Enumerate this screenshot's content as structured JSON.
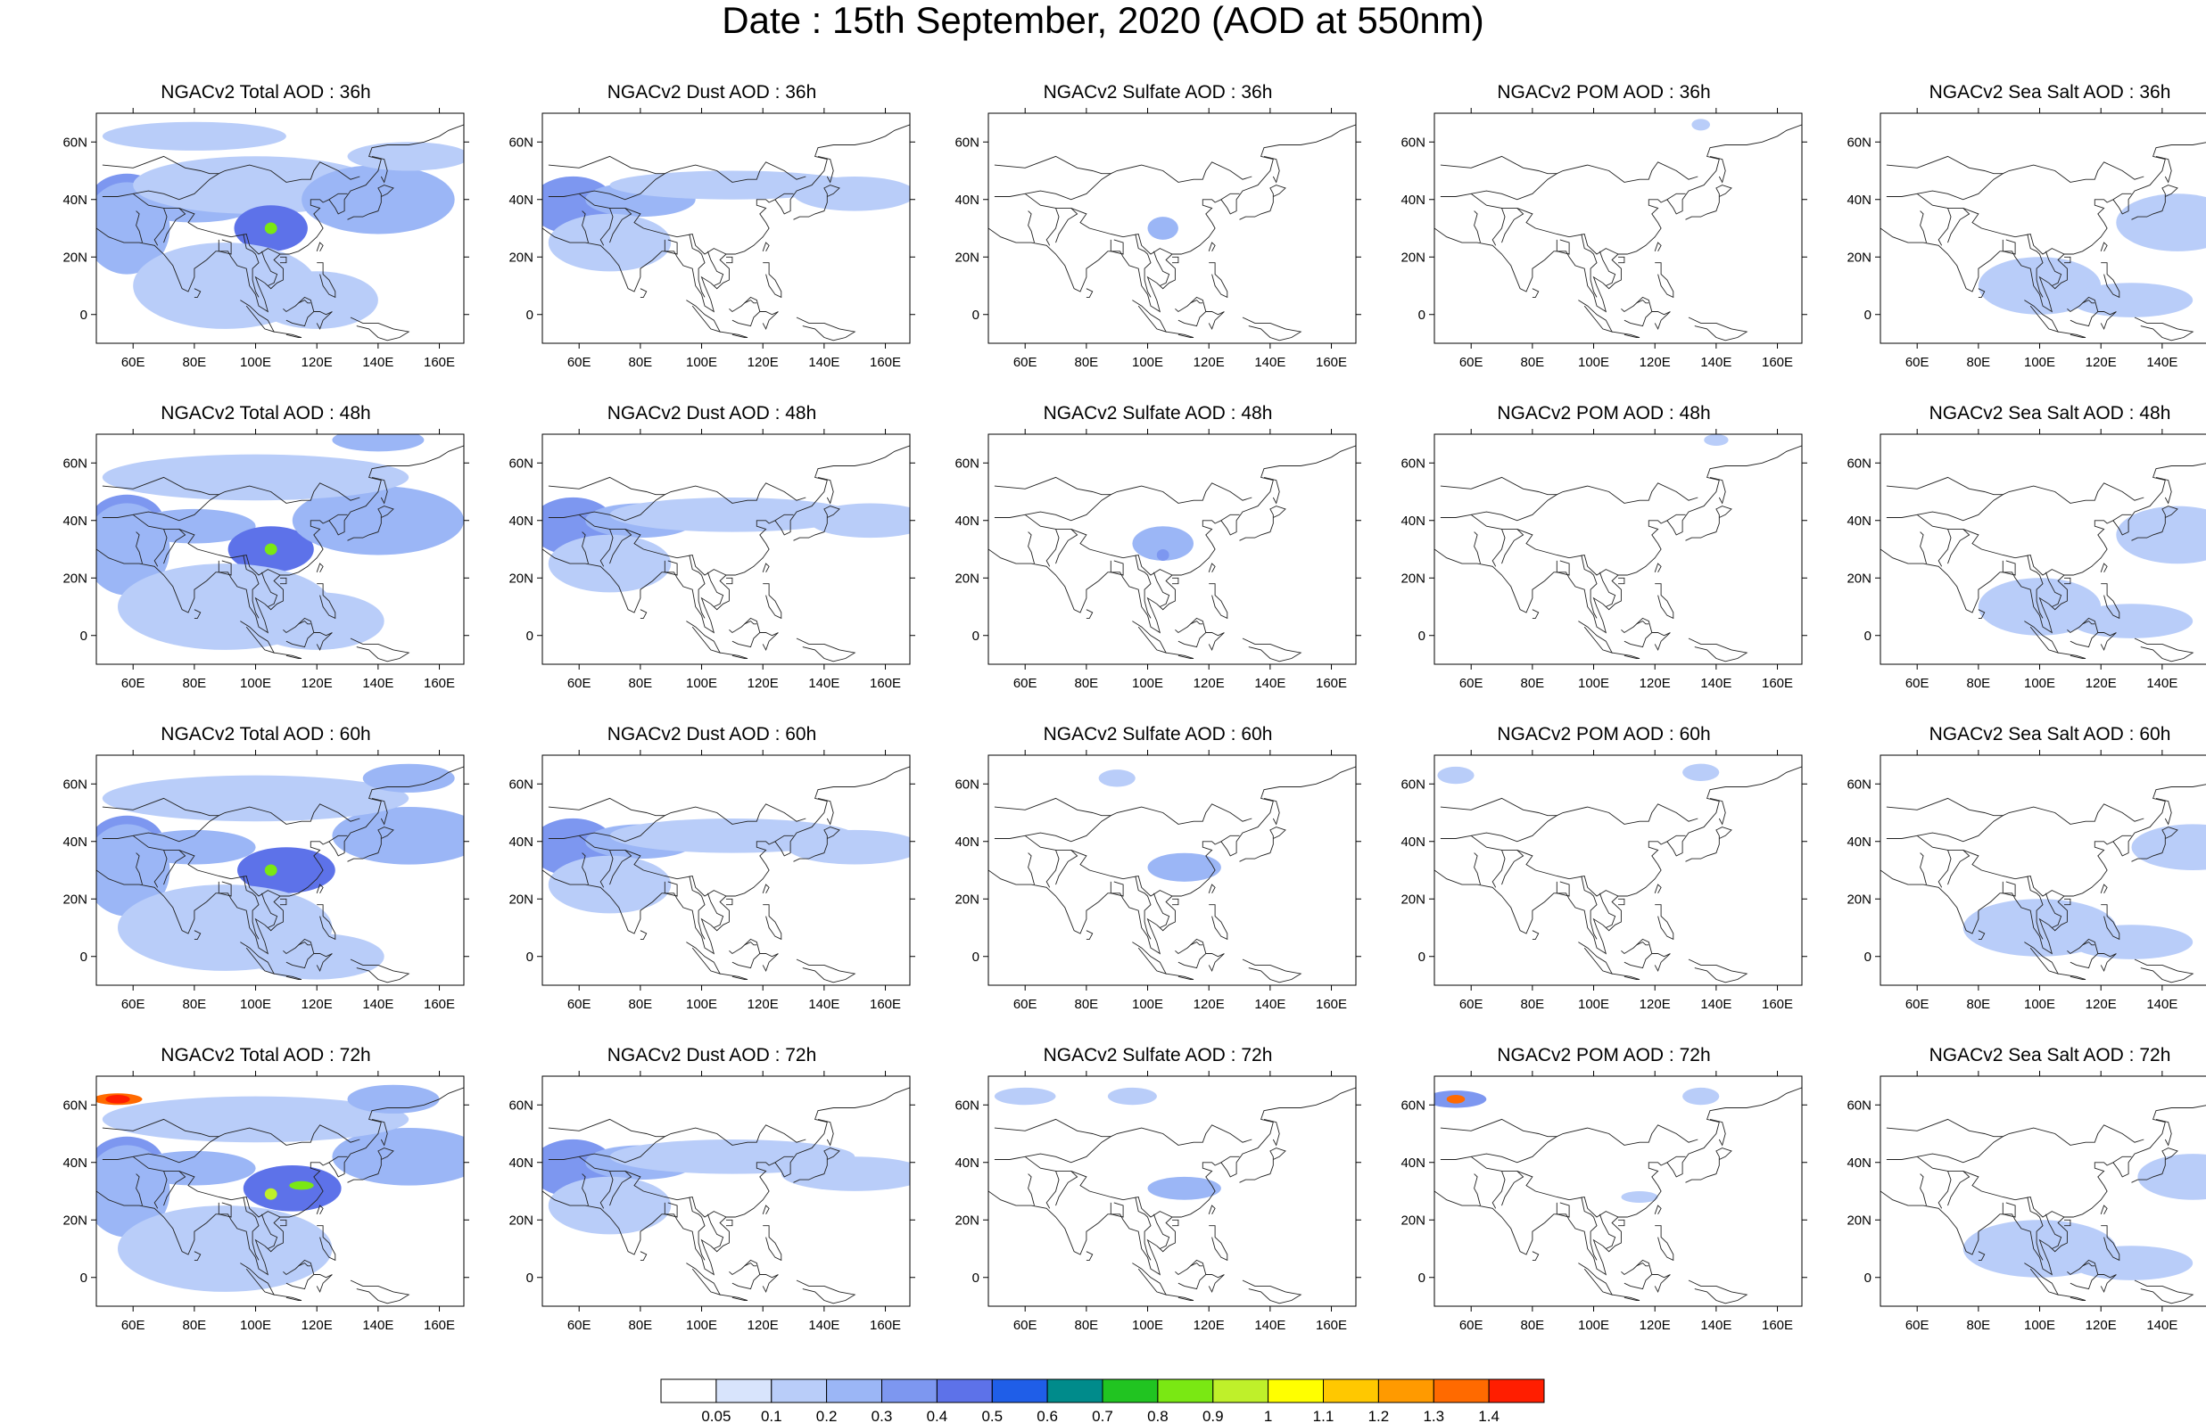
{
  "figure_title": "Date : 15th September, 2020 (AOD at 550nm)",
  "panel_titles": [
    [
      "NGACv2 Total AOD : 36h",
      "NGACv2 Dust AOD : 36h",
      "NGACv2 Sulfate AOD : 36h",
      "NGACv2 POM AOD : 36h",
      "NGACv2 Sea Salt AOD : 36h"
    ],
    [
      "NGACv2 Total AOD : 48h",
      "NGACv2 Dust AOD : 48h",
      "NGACv2 Sulfate AOD : 48h",
      "NGACv2 POM AOD : 48h",
      "NGACv2 Sea Salt AOD : 48h"
    ],
    [
      "NGACv2 Total AOD : 60h",
      "NGACv2 Dust AOD : 60h",
      "NGACv2 Sulfate AOD : 60h",
      "NGACv2 POM AOD : 60h",
      "NGACv2 Sea Salt AOD : 60h"
    ],
    [
      "NGACv2 Total AOD : 72h",
      "NGACv2 Dust AOD : 72h",
      "NGACv2 Sulfate AOD : 72h",
      "NGACv2 POM AOD : 72h",
      "NGACv2 Sea Salt  AOD : 72h"
    ]
  ],
  "chart_data": {
    "type": "heatmap",
    "species": [
      "Total",
      "Dust",
      "Sulfate",
      "POM",
      "Sea Salt"
    ],
    "forecast_hours": [
      "36h",
      "48h",
      "60h",
      "72h"
    ],
    "x_range": [
      48,
      168
    ],
    "y_range": [
      -10,
      70
    ],
    "x_ticks": [
      60,
      80,
      100,
      120,
      140,
      160
    ],
    "x_tick_labels": [
      "60E",
      "80E",
      "100E",
      "120E",
      "140E",
      "160E"
    ],
    "y_ticks": [
      0,
      20,
      40,
      60
    ],
    "y_tick_labels": [
      "0",
      "20N",
      "40N",
      "60N"
    ],
    "colorbar": {
      "labels": [
        "0.05",
        "0.1",
        "0.2",
        "0.3",
        "0.4",
        "0.5",
        "0.6",
        "0.7",
        "0.8",
        "0.9",
        "1",
        "1.1",
        "1.2",
        "1.3",
        "1.4"
      ],
      "colors": [
        "#ffffff",
        "#d8e4fc",
        "#b9cdf9",
        "#9bb6f6",
        "#7d97f0",
        "#5d72e9",
        "#1f5ee8",
        "#008b8b",
        "#21c421",
        "#7ae813",
        "#bff02a",
        "#ffff00",
        "#ffc800",
        "#ff9a00",
        "#ff6a00",
        "#ff1e00"
      ]
    },
    "plumes": {
      "Total": [
        [
          [
            58,
            40,
            12,
            9,
            0.3
          ],
          [
            58,
            30,
            14,
            16,
            0.2
          ],
          [
            80,
            38,
            20,
            6,
            0.2
          ],
          [
            100,
            45,
            40,
            10,
            0.15
          ],
          [
            105,
            30,
            12,
            8,
            0.4
          ],
          [
            105,
            30,
            2,
            2,
            0.8
          ],
          [
            140,
            40,
            25,
            12,
            0.2
          ],
          [
            90,
            10,
            30,
            15,
            0.1
          ],
          [
            80,
            62,
            30,
            5,
            0.1
          ],
          [
            150,
            55,
            20,
            5,
            0.1
          ],
          [
            120,
            5,
            20,
            10,
            0.15
          ]
        ],
        [
          [
            58,
            40,
            12,
            9,
            0.3
          ],
          [
            58,
            30,
            14,
            16,
            0.2
          ],
          [
            80,
            38,
            20,
            6,
            0.2
          ],
          [
            105,
            30,
            14,
            8,
            0.4
          ],
          [
            105,
            30,
            2,
            2,
            0.8
          ],
          [
            140,
            40,
            28,
            12,
            0.2
          ],
          [
            100,
            55,
            50,
            8,
            0.1
          ],
          [
            90,
            10,
            35,
            15,
            0.15
          ],
          [
            140,
            68,
            15,
            4,
            0.2
          ],
          [
            120,
            5,
            22,
            10,
            0.15
          ]
        ],
        [
          [
            58,
            40,
            12,
            9,
            0.3
          ],
          [
            58,
            30,
            14,
            16,
            0.2
          ],
          [
            80,
            38,
            20,
            6,
            0.2
          ],
          [
            110,
            30,
            16,
            8,
            0.4
          ],
          [
            105,
            30,
            2,
            2,
            0.8
          ],
          [
            150,
            42,
            25,
            10,
            0.2
          ],
          [
            100,
            55,
            50,
            8,
            0.1
          ],
          [
            90,
            10,
            35,
            15,
            0.15
          ],
          [
            150,
            62,
            15,
            5,
            0.2
          ],
          [
            120,
            0,
            22,
            8,
            0.15
          ]
        ],
        [
          [
            58,
            40,
            12,
            9,
            0.3
          ],
          [
            58,
            30,
            14,
            16,
            0.2
          ],
          [
            80,
            38,
            20,
            6,
            0.2
          ],
          [
            112,
            31,
            16,
            8,
            0.4
          ],
          [
            105,
            29,
            2,
            2,
            0.9
          ],
          [
            115,
            32,
            4,
            1.5,
            0.8
          ],
          [
            150,
            42,
            25,
            10,
            0.2
          ],
          [
            100,
            55,
            50,
            8,
            0.1
          ],
          [
            55,
            62,
            8,
            2,
            1.3
          ],
          [
            55,
            62,
            4,
            1.5,
            1.4
          ],
          [
            90,
            10,
            35,
            15,
            0.15
          ],
          [
            145,
            62,
            15,
            5,
            0.2
          ]
        ]
      ],
      "Dust": [
        [
          [
            58,
            38,
            14,
            10,
            0.3
          ],
          [
            80,
            40,
            18,
            6,
            0.2
          ],
          [
            110,
            45,
            40,
            5,
            0.1
          ],
          [
            150,
            42,
            20,
            6,
            0.1
          ],
          [
            70,
            25,
            20,
            10,
            0.1
          ]
        ],
        [
          [
            58,
            38,
            14,
            10,
            0.3
          ],
          [
            80,
            40,
            18,
            6,
            0.2
          ],
          [
            110,
            42,
            40,
            6,
            0.15
          ],
          [
            155,
            40,
            20,
            6,
            0.1
          ],
          [
            70,
            25,
            20,
            10,
            0.1
          ]
        ],
        [
          [
            58,
            38,
            14,
            10,
            0.3
          ],
          [
            80,
            40,
            18,
            6,
            0.2
          ],
          [
            110,
            42,
            40,
            6,
            0.15
          ],
          [
            150,
            38,
            22,
            6,
            0.1
          ],
          [
            70,
            25,
            20,
            10,
            0.1
          ]
        ],
        [
          [
            58,
            38,
            14,
            10,
            0.3
          ],
          [
            80,
            40,
            18,
            6,
            0.2
          ],
          [
            110,
            42,
            40,
            6,
            0.15
          ],
          [
            150,
            36,
            24,
            6,
            0.1
          ],
          [
            70,
            25,
            20,
            10,
            0.1
          ]
        ]
      ],
      "Sulfate": [
        [
          [
            105,
            30,
            5,
            4,
            0.2
          ]
        ],
        [
          [
            105,
            32,
            10,
            6,
            0.2
          ],
          [
            105,
            28,
            2,
            2,
            0.3
          ]
        ],
        [
          [
            112,
            31,
            12,
            5,
            0.2
          ],
          [
            90,
            62,
            6,
            3,
            0.1
          ]
        ],
        [
          [
            112,
            31,
            12,
            4,
            0.25
          ],
          [
            60,
            63,
            10,
            3,
            0.1
          ],
          [
            95,
            63,
            8,
            3,
            0.1
          ]
        ]
      ],
      "POM": [
        [
          [
            135,
            66,
            3,
            2,
            0.1
          ]
        ],
        [
          [
            140,
            68,
            4,
            2,
            0.1
          ]
        ],
        [
          [
            135,
            64,
            6,
            3,
            0.1
          ],
          [
            55,
            63,
            6,
            3,
            0.1
          ]
        ],
        [
          [
            55,
            62,
            10,
            3,
            0.3
          ],
          [
            55,
            62,
            3,
            1.5,
            1.3
          ],
          [
            135,
            63,
            6,
            3,
            0.1
          ],
          [
            115,
            28,
            6,
            2,
            0.1
          ]
        ]
      ],
      "Sea Salt": [
        [
          [
            145,
            32,
            20,
            10,
            0.1
          ],
          [
            100,
            10,
            20,
            10,
            0.1
          ],
          [
            130,
            5,
            20,
            6,
            0.1
          ]
        ],
        [
          [
            145,
            35,
            20,
            10,
            0.1
          ],
          [
            100,
            10,
            20,
            10,
            0.1
          ],
          [
            130,
            5,
            20,
            6,
            0.1
          ]
        ],
        [
          [
            150,
            38,
            20,
            8,
            0.1
          ],
          [
            100,
            10,
            25,
            10,
            0.1
          ],
          [
            130,
            5,
            20,
            6,
            0.1
          ]
        ],
        [
          [
            150,
            35,
            18,
            8,
            0.1
          ],
          [
            100,
            10,
            25,
            10,
            0.1
          ],
          [
            130,
            5,
            20,
            6,
            0.1
          ]
        ]
      ]
    }
  }
}
